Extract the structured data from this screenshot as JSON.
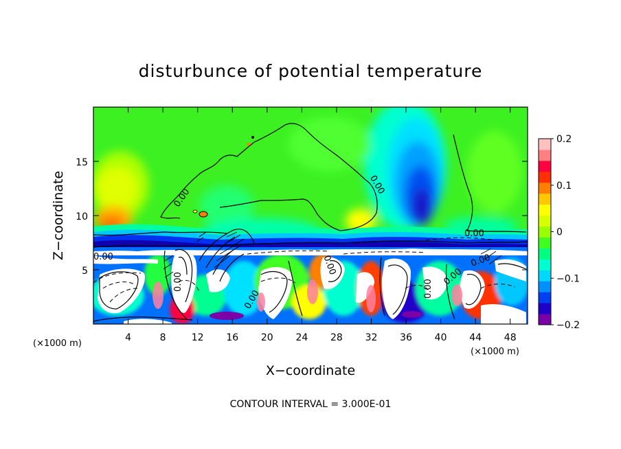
{
  "chart_data": {
    "type": "heatmap",
    "title": "disturbunce of potential temperature",
    "xlabel": "X−coordinate",
    "ylabel": "Z−coordinate",
    "x_unit": "(×1000 m)",
    "x_unit_right": "(×1000 m)",
    "xlim": [
      0,
      50
    ],
    "ylim": [
      0,
      20
    ],
    "x_ticks": [
      4,
      8,
      12,
      16,
      20,
      24,
      28,
      32,
      36,
      40,
      44,
      48
    ],
    "y_ticks": [
      5,
      10,
      15
    ],
    "colorbar": {
      "min": -0.2,
      "max": 0.2,
      "tick_values": [
        0.2,
        0.1,
        0,
        -0.1,
        -0.2
      ],
      "tick_labels": [
        "0.2",
        "0.1",
        "0",
        "−0.1",
        "−0.2"
      ],
      "colors": [
        "#7a00a8",
        "#2000c8",
        "#0040f0",
        "#0090ff",
        "#00d8ff",
        "#00ffd0",
        "#00ff80",
        "#40ff20",
        "#9aff00",
        "#d8ff00",
        "#ffff00",
        "#ffc800",
        "#ff8000",
        "#ff3000",
        "#ff0040",
        "#ff8080",
        "#ffc0c0"
      ]
    },
    "contour_labels": [
      "0.00",
      "0.00",
      "0.00",
      "0.00",
      "0.00",
      "0.00",
      "0.00",
      "0.00",
      "0.00",
      "0.00"
    ],
    "footer": "CONTOUR INTERVAL =  3.000E-01"
  }
}
